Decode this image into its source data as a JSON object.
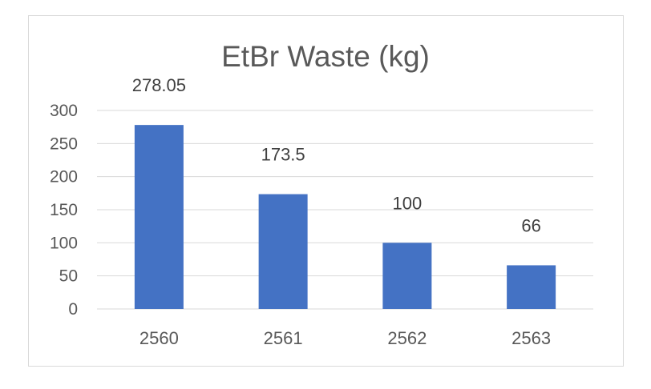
{
  "chart_data": {
    "type": "bar",
    "title": "EtBr Waste (kg)",
    "categories": [
      "2560",
      "2561",
      "2562",
      "2563"
    ],
    "values": [
      278.05,
      173.5,
      100,
      66
    ],
    "data_labels": [
      "278.05",
      "173.5",
      "100",
      "66"
    ],
    "xlabel": "",
    "ylabel": "",
    "ylim": [
      0,
      300
    ],
    "yticks": [
      0,
      50,
      100,
      150,
      200,
      250,
      300
    ],
    "grid": true,
    "legend": "none",
    "bar_color": "#4472c4",
    "grid_color": "#d9d9d9"
  }
}
